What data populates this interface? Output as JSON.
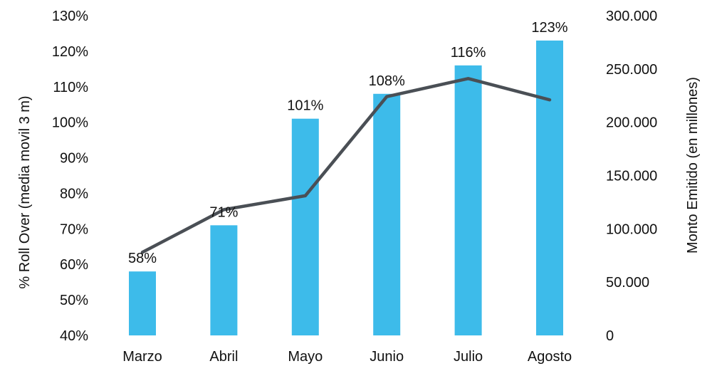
{
  "chart_data": {
    "type": "bar",
    "categories": [
      "Marzo",
      "Abril",
      "Mayo",
      "Junio",
      "Julio",
      "Agosto"
    ],
    "series": [
      {
        "type": "bar",
        "axis": "left",
        "values": [
          58,
          71,
          101,
          108,
          116,
          123
        ],
        "labels": [
          "58%",
          "71%",
          "101%",
          "108%",
          "116%",
          "123%"
        ],
        "color": "#3dbbea"
      },
      {
        "type": "line",
        "axis": "right",
        "values": [
          78000,
          118000,
          131000,
          224000,
          241000,
          221000
        ],
        "color": "#4a4f55"
      }
    ],
    "y_left": {
      "label": "% Roll Over (media movil 3 m)",
      "ylim": [
        40,
        130
      ],
      "ticks": [
        40,
        50,
        60,
        70,
        80,
        90,
        100,
        110,
        120,
        130
      ],
      "tick_labels": [
        "40%",
        "50%",
        "60%",
        "70%",
        "80%",
        "90%",
        "100%",
        "110%",
        "120%",
        "130%"
      ]
    },
    "y_right": {
      "label": "Monto Emitido (en millones)",
      "ylim": [
        0,
        300000
      ],
      "ticks": [
        0,
        50000,
        100000,
        150000,
        200000,
        250000,
        300000
      ],
      "tick_labels": [
        "0",
        "50.000",
        "100.000",
        "150.000",
        "200.000",
        "250.000",
        "300.000"
      ]
    },
    "grid": false,
    "legend": "none"
  }
}
